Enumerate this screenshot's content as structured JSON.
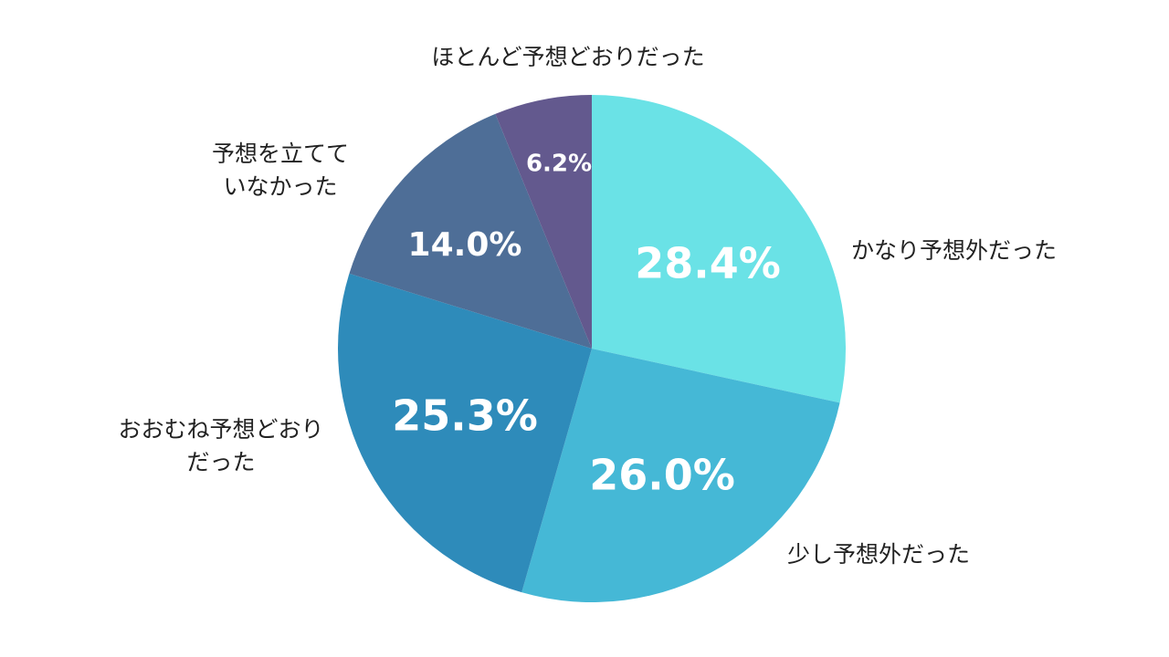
{
  "chart_data": {
    "type": "pie",
    "title": "",
    "start_angle_deg": 0,
    "direction": "clockwise",
    "slices": [
      {
        "label": [
          "かなり予想外だった"
        ],
        "value": 28.4,
        "display": "28.4%",
        "color": "#6AE2E6"
      },
      {
        "label": [
          "少し予想外だった"
        ],
        "value": 26.0,
        "display": "26.0%",
        "color": "#45B8D6"
      },
      {
        "label": [
          "おおむね予想どおり",
          "だった"
        ],
        "value": 25.3,
        "display": "25.3%",
        "color": "#2E8BBA"
      },
      {
        "label": [
          "予想を立てて",
          "いなかった"
        ],
        "value": 14.0,
        "display": "14.0%",
        "color": "#4E6E97"
      },
      {
        "label": [
          "ほとんど予想どおりだった"
        ],
        "value": 6.2,
        "display": "6.2%",
        "color": "#63598E"
      }
    ]
  }
}
